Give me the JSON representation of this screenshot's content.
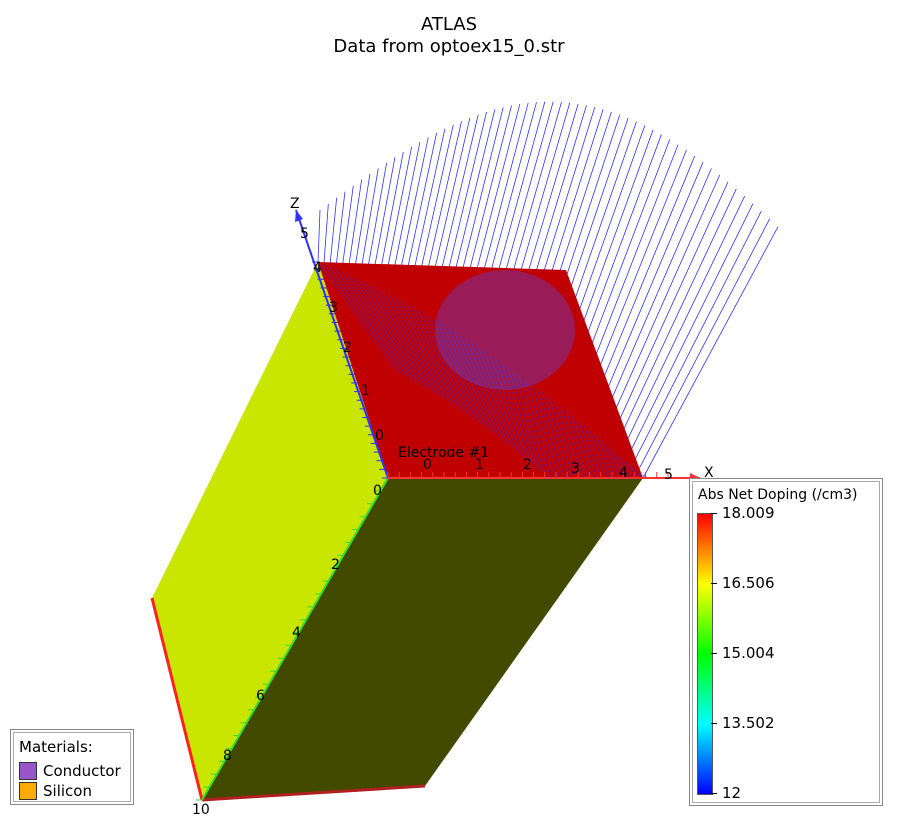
{
  "title": {
    "line1": "ATLAS",
    "line2": "Data from optoex15_0.str"
  },
  "axes": {
    "x": {
      "label": "X",
      "ticks": [
        "0",
        "1",
        "2",
        "3",
        "4",
        "5"
      ]
    },
    "y": {
      "ticks": [
        "0",
        "2",
        "4",
        "6",
        "8",
        "10"
      ]
    },
    "z": {
      "label": "Z",
      "ticks": [
        "0",
        "1",
        "2",
        "3",
        "4",
        "5"
      ]
    }
  },
  "electrode_label": "Electrode #1",
  "legend": {
    "title": "Abs Net Doping (/cm3)",
    "values": [
      "18.009",
      "16.506",
      "15.004",
      "13.502",
      "12"
    ],
    "colors": [
      "#ff0000",
      "#ffff00",
      "#00ff00",
      "#00ffff",
      "#0000ff"
    ]
  },
  "materials": {
    "title": "Materials:",
    "items": [
      {
        "label": "Conductor",
        "color": "#9955cc"
      },
      {
        "label": "Silicon",
        "color": "#ffaa00"
      }
    ]
  },
  "colors": {
    "top_face": "#c00000",
    "left_face": "#c8e600",
    "front_face": "#424a00",
    "ray": "#3333ee"
  }
}
